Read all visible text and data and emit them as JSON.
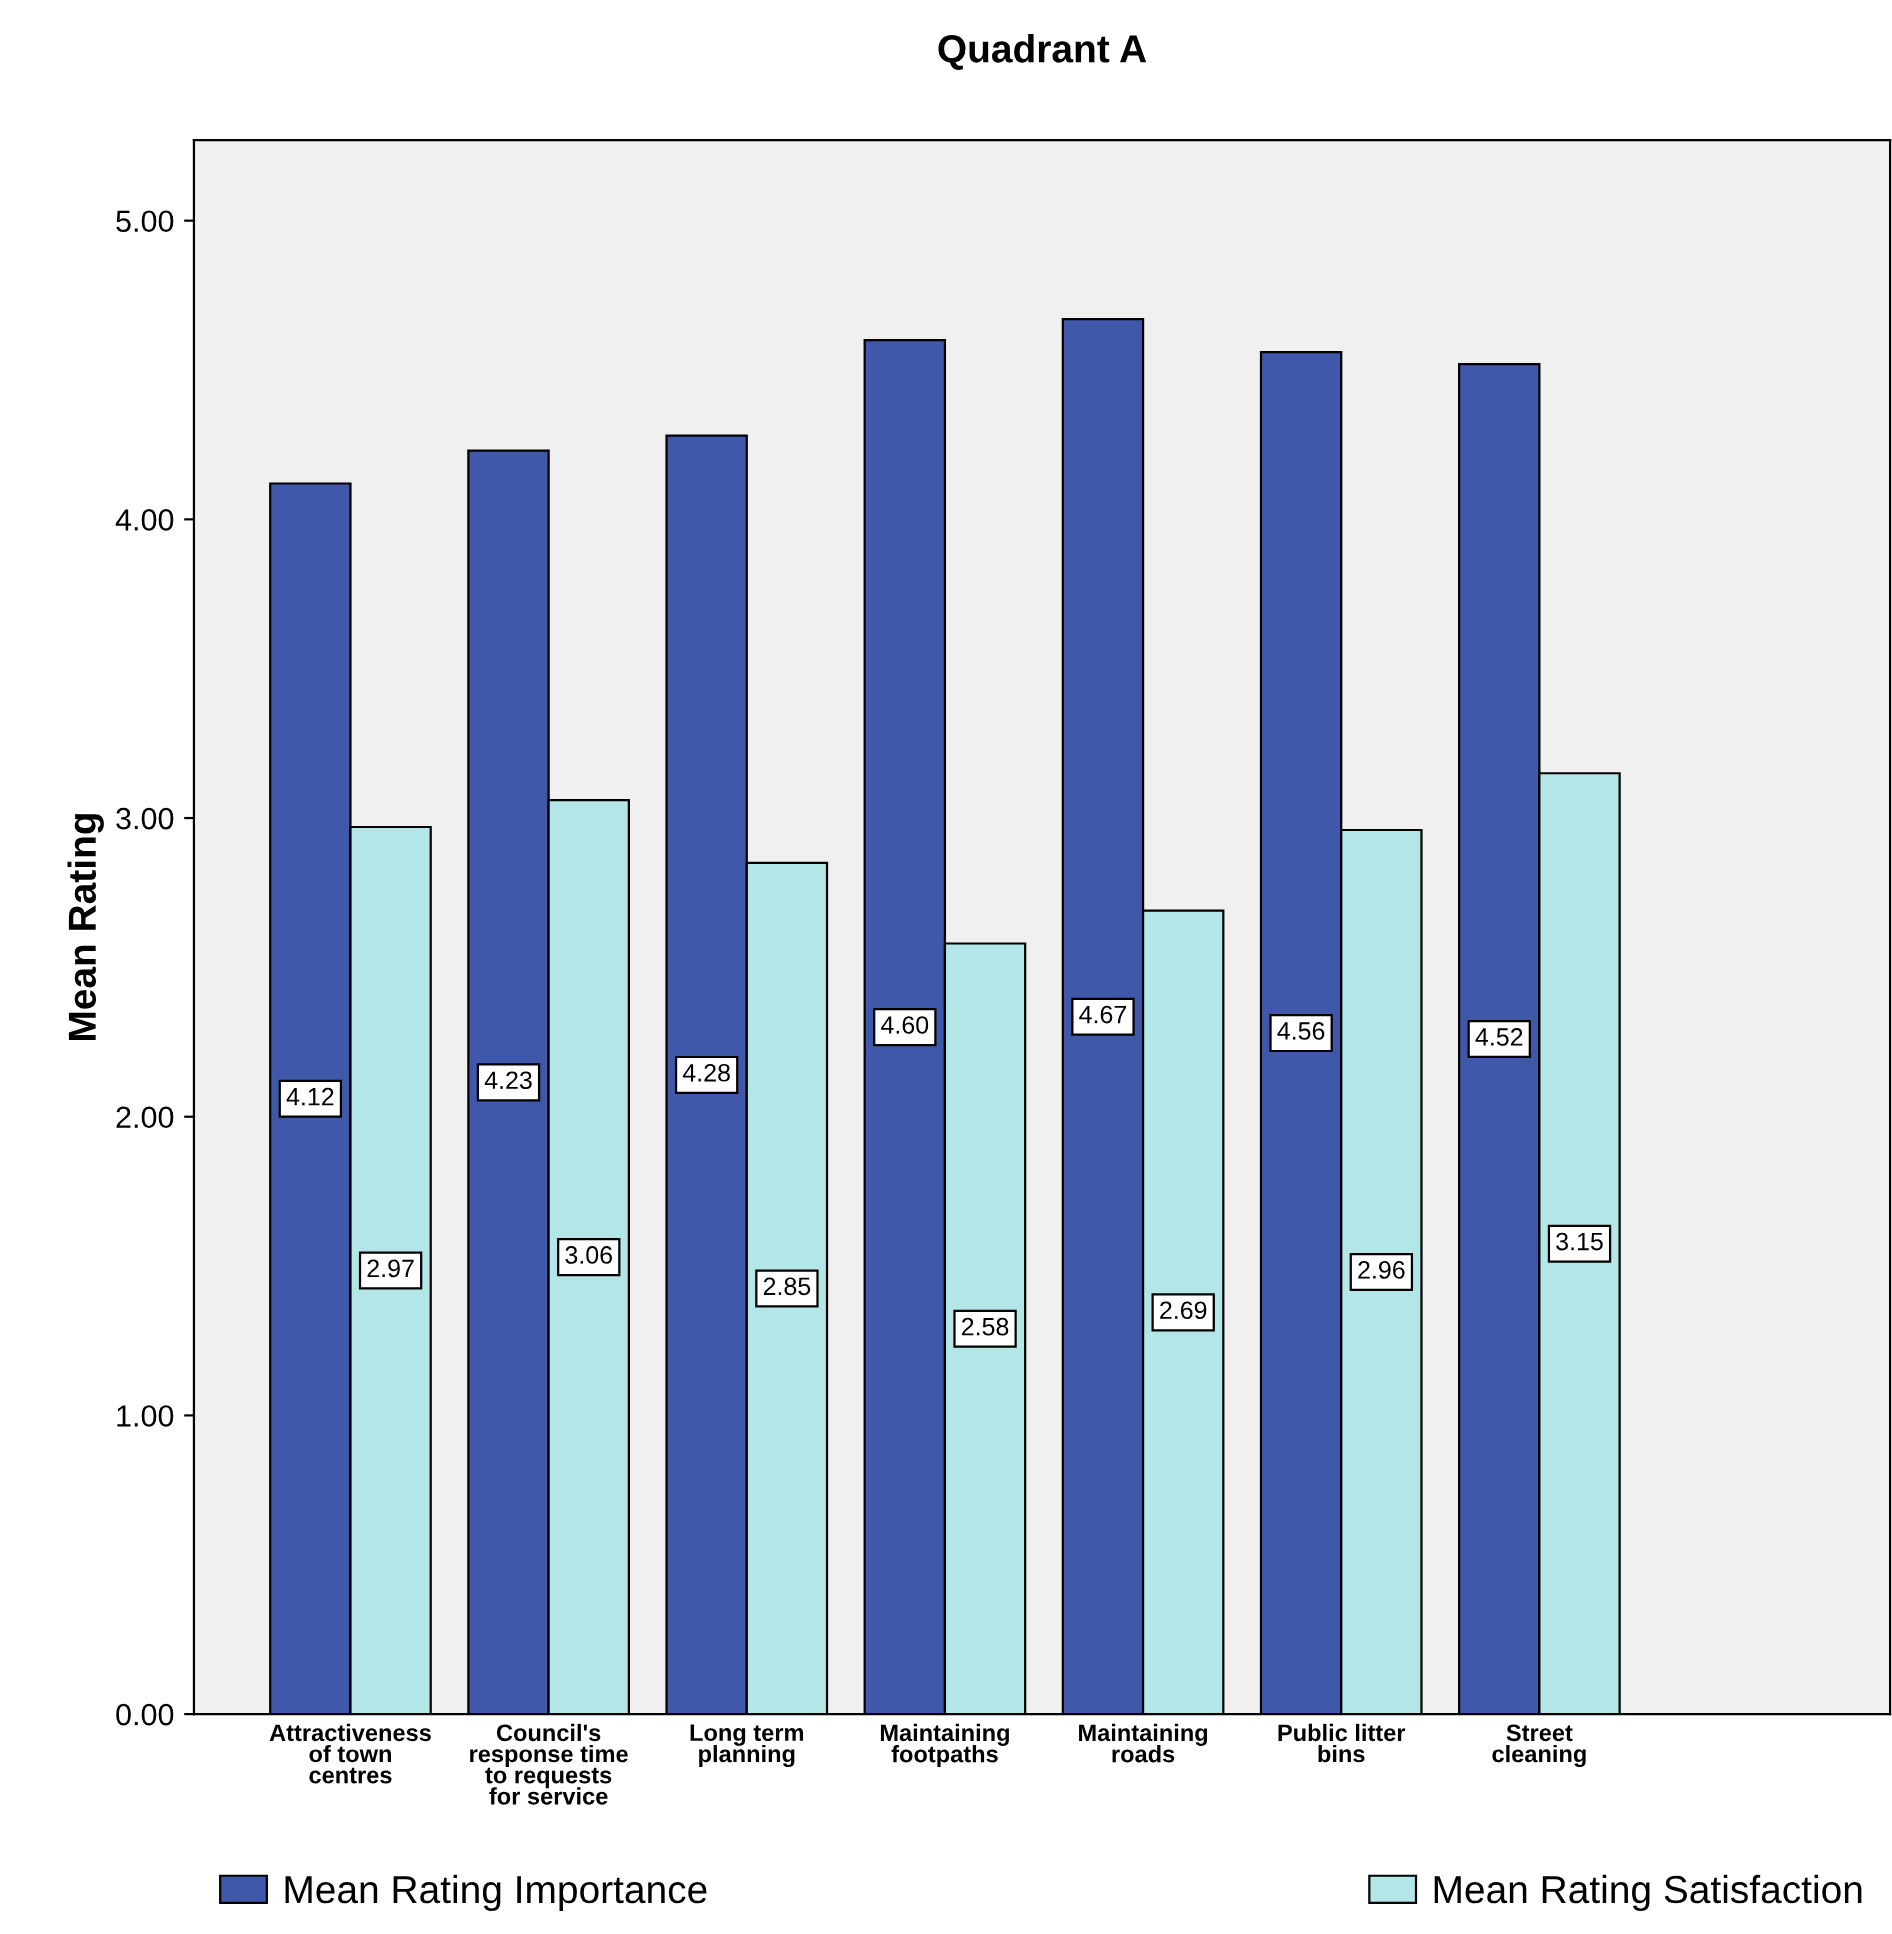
{
  "chart_data": {
    "type": "bar",
    "title": "Quadrant A",
    "ylabel": "Mean Rating",
    "categories": [
      "Attractiveness\nof town\ncentres",
      "Council's\nresponse time\nto requests\nfor service",
      "Long term\nplanning",
      "Maintaining\nfootpaths",
      "Maintaining\nroads",
      "Public litter\nbins",
      "Street\ncleaning"
    ],
    "series": [
      {
        "name": "Mean Rating Importance",
        "color": "#3f58a9",
        "values": [
          4.12,
          4.23,
          4.28,
          4.6,
          4.67,
          4.56,
          4.52
        ],
        "value_labels": [
          "4.12",
          "4.23",
          "4.28",
          "4.60",
          "4.67",
          "4.56",
          "4.52"
        ]
      },
      {
        "name": "Mean Rating Satisfaction",
        "color": "#b3e6e6",
        "values": [
          2.97,
          3.06,
          2.85,
          2.58,
          2.69,
          2.96,
          3.15
        ],
        "value_labels": [
          "2.97",
          "3.06",
          "2.85",
          "2.58",
          "2.69",
          "2.96",
          "3.15"
        ]
      }
    ],
    "ylim": [
      0,
      5.27
    ],
    "yticks": [
      {
        "value": 0,
        "label": "0.00"
      },
      {
        "value": 1,
        "label": "1.00"
      },
      {
        "value": 2,
        "label": "2.00"
      },
      {
        "value": 3,
        "label": "3.00"
      },
      {
        "value": 4,
        "label": "4.00"
      },
      {
        "value": 5,
        "label": "5.00"
      }
    ],
    "grid": false,
    "legend": "bottom"
  }
}
